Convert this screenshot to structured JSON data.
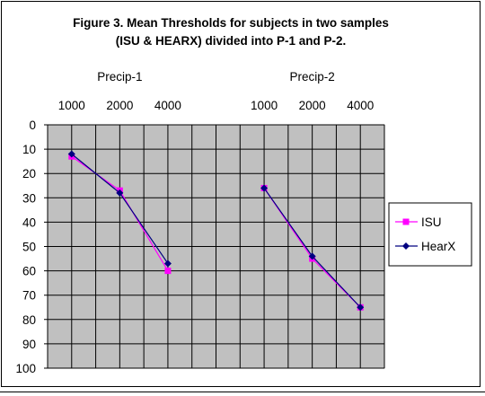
{
  "chart_data": {
    "type": "line",
    "title_line1": "Figure 3.  Mean Thresholds for subjects in two samples",
    "title_line2": "(ISU & HEARX) divided into P-1 and P-2.",
    "panels": [
      {
        "label": "Precip-1",
        "categories": [
          "1000",
          "2000",
          "4000"
        ]
      },
      {
        "label": "Precip-2",
        "categories": [
          "1000",
          "2000",
          "4000"
        ]
      }
    ],
    "y_ticks": [
      "0",
      "10",
      "20",
      "30",
      "40",
      "50",
      "60",
      "70",
      "80",
      "90",
      "100"
    ],
    "ylim": [
      0,
      100
    ],
    "y_inverted": true,
    "grid": true,
    "legend_position": "right",
    "series": [
      {
        "name": "ISU",
        "color": "#FF00FF",
        "marker": "square",
        "panel1": [
          13,
          27,
          60
        ],
        "panel2": [
          26,
          55,
          75
        ]
      },
      {
        "name": "HearX",
        "color": "#000080",
        "marker": "diamond",
        "panel1": [
          12,
          28,
          57
        ],
        "panel2": [
          26,
          54,
          75
        ]
      }
    ]
  }
}
